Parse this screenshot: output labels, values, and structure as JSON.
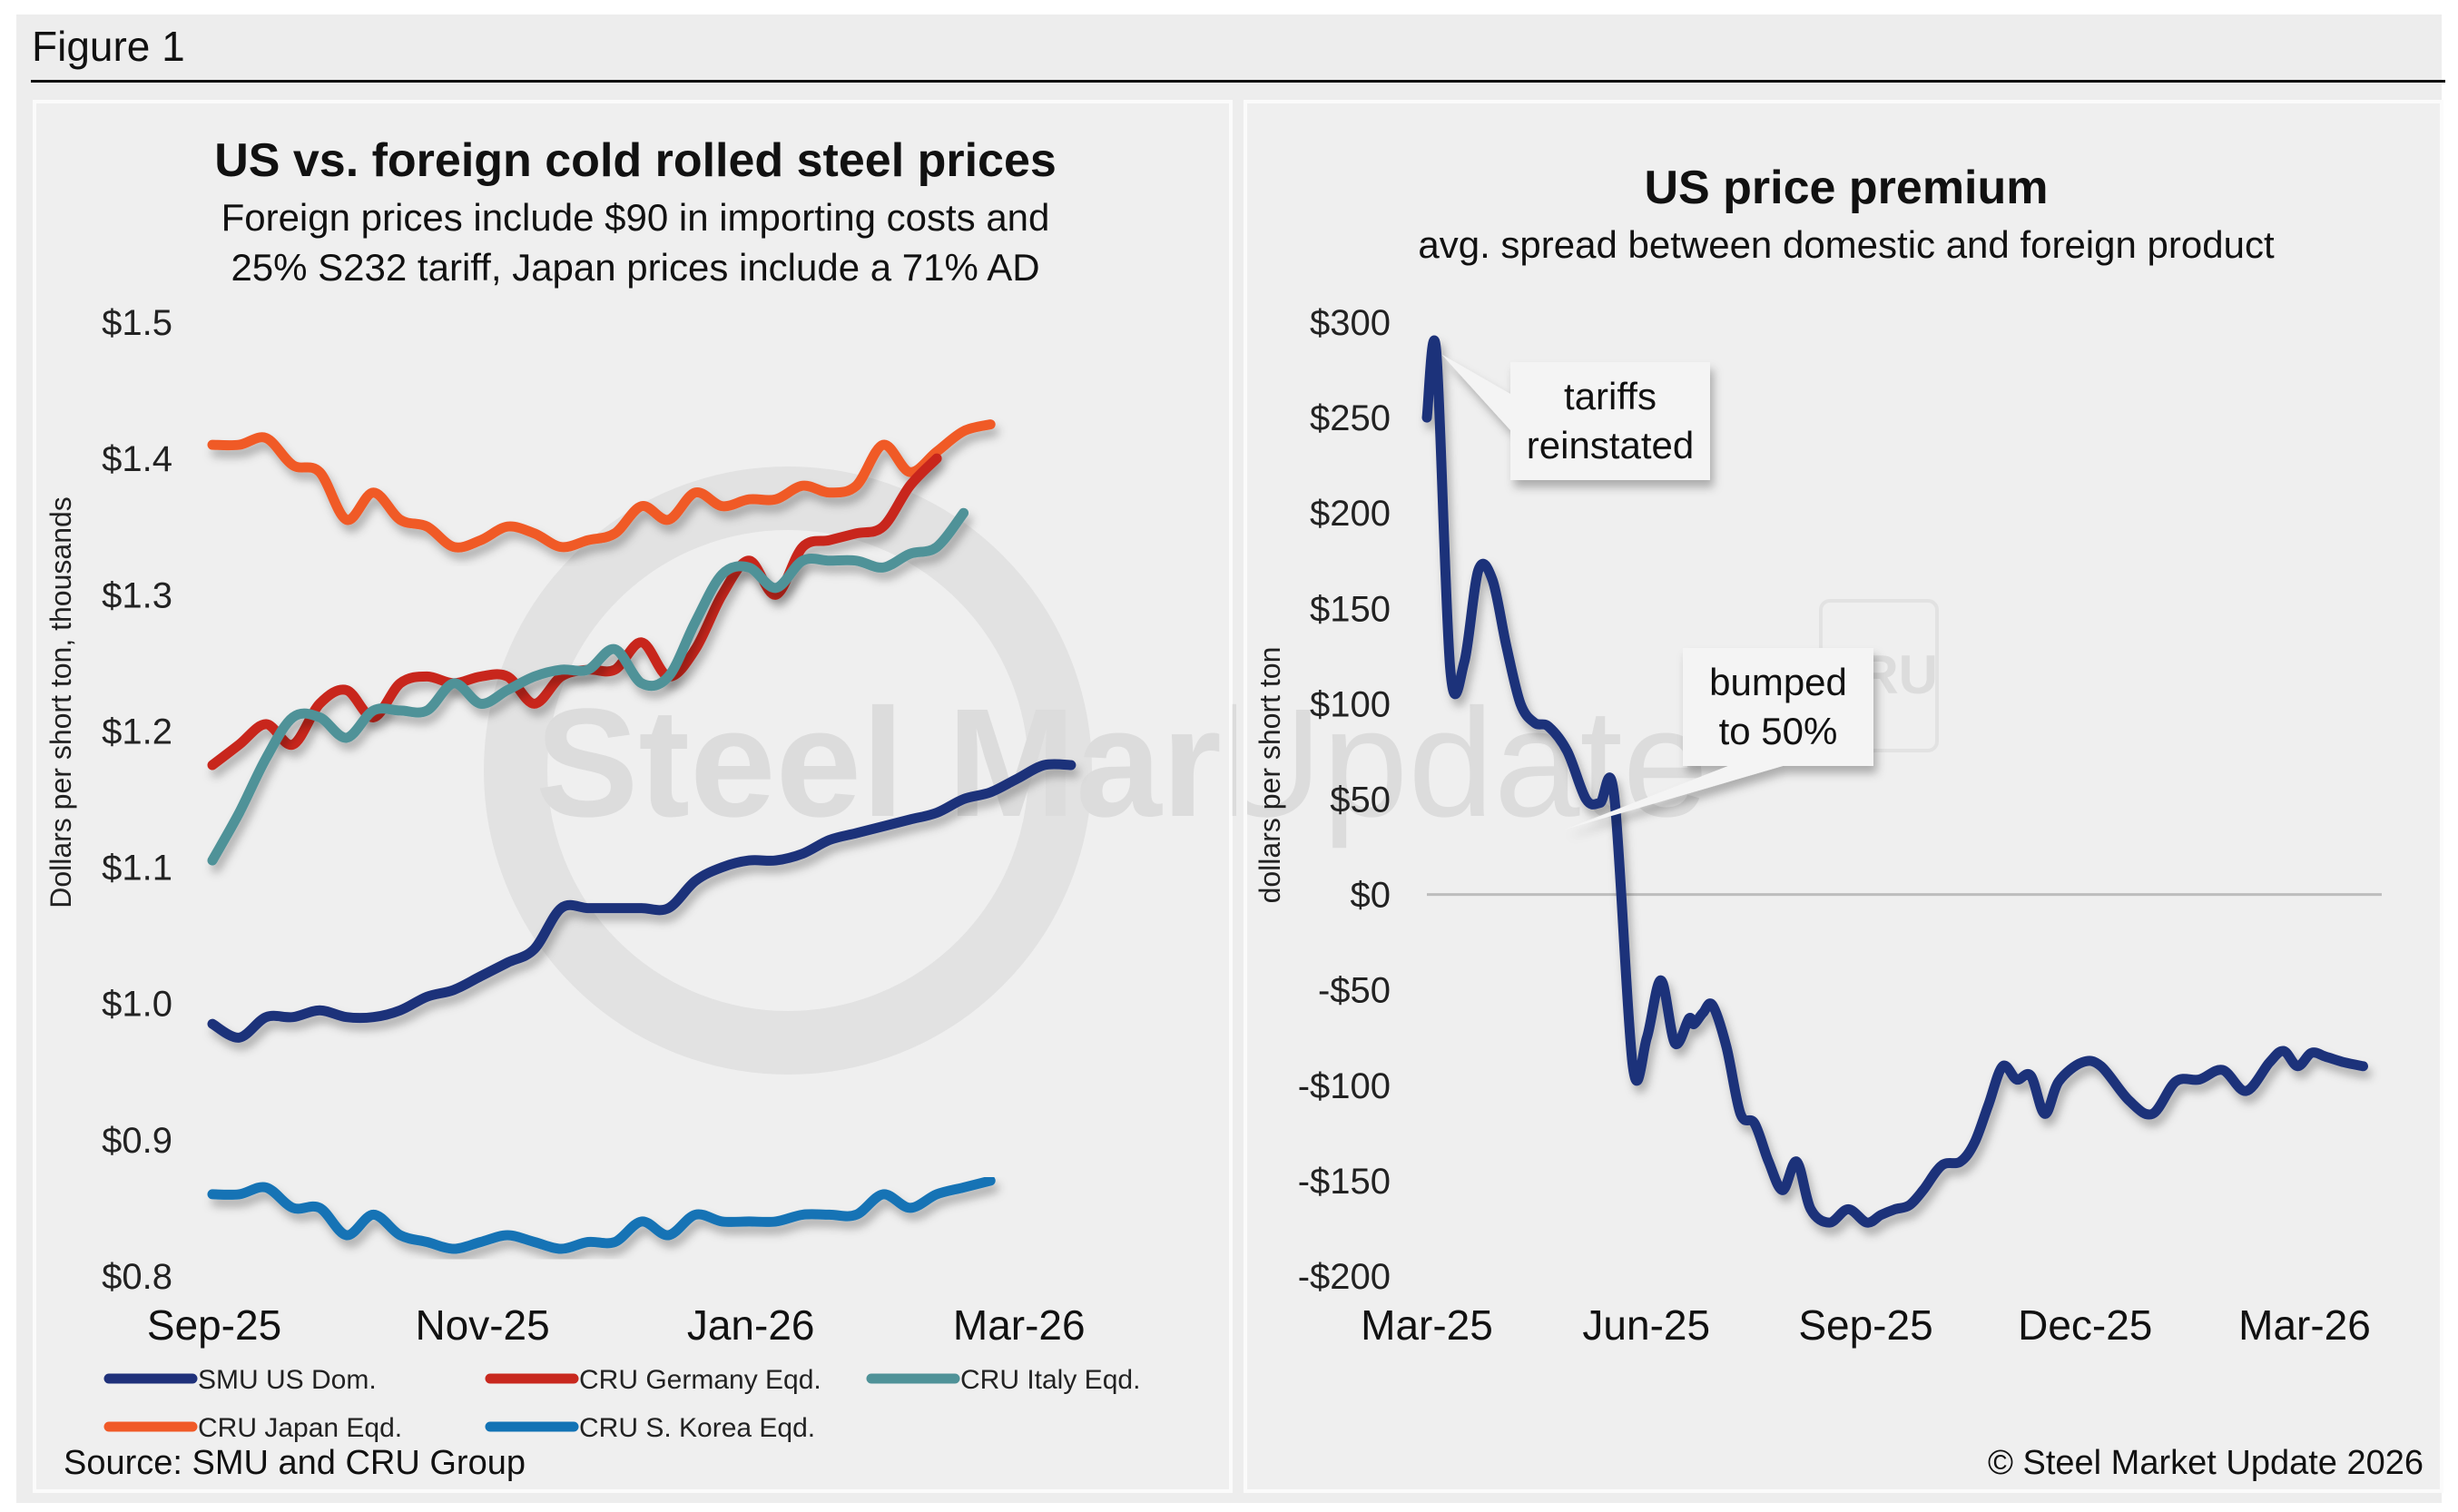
{
  "figure_label": "Figure 1",
  "chart_data": [
    {
      "type": "line",
      "title": "US vs. foreign cold rolled steel prices",
      "subtitle_lines": [
        "Foreign prices include $90 in importing costs and",
        "25% S232 tariff, Japan prices include a 71% AD"
      ],
      "xlabel": "",
      "ylabel": "Dollars per short ton, thousands",
      "ylim": [
        0.8,
        1.5
      ],
      "yticks": [
        "$1.5",
        "$1.4",
        "$1.3",
        "$1.2",
        "$1.1",
        "$1.0",
        "$0.9",
        "$0.8"
      ],
      "ytick_values": [
        1.5,
        1.4,
        1.3,
        1.2,
        1.1,
        1.0,
        0.9,
        0.8
      ],
      "xticks": [
        "Sep-25",
        "Nov-25",
        "Jan-26",
        "Mar-26"
      ],
      "xtick_positions_months": [
        0,
        2,
        4,
        6
      ],
      "xlim_months": [
        0,
        6.8
      ],
      "x_months": [
        0,
        0.2,
        0.4,
        0.6,
        0.8,
        1.0,
        1.2,
        1.4,
        1.6,
        1.8,
        2.0,
        2.2,
        2.4,
        2.6,
        2.8,
        3.0,
        3.2,
        3.4,
        3.6,
        3.8,
        4.0,
        4.2,
        4.4,
        4.6,
        4.8,
        5.0,
        5.2,
        5.4,
        5.6,
        5.8,
        6.0,
        6.2,
        6.4,
        6.6,
        6.8
      ],
      "series": [
        {
          "name": "SMU US Dom.",
          "color": "#1f317a",
          "values": [
            0.985,
            0.975,
            0.99,
            0.99,
            0.995,
            0.99,
            0.99,
            0.995,
            1.005,
            1.01,
            1.02,
            1.03,
            1.04,
            1.07,
            1.07,
            1.07,
            1.07,
            1.07,
            1.09,
            1.1,
            1.105,
            1.105,
            1.11,
            1.12,
            1.125,
            1.13,
            1.135,
            1.14,
            1.15,
            1.155,
            1.165,
            1.175,
            1.175,
            null,
            null
          ]
        },
        {
          "name": "CRU Germany Eqd.",
          "color": "#c8281e",
          "values": [
            1.175,
            1.19,
            1.205,
            1.19,
            1.22,
            1.23,
            1.21,
            1.235,
            1.24,
            1.235,
            1.24,
            1.24,
            1.22,
            1.24,
            1.245,
            1.245,
            1.265,
            1.24,
            1.26,
            1.3,
            1.325,
            1.3,
            1.335,
            1.34,
            1.345,
            1.35,
            1.38,
            1.4,
            null,
            null,
            null,
            null,
            null,
            null,
            null
          ]
        },
        {
          "name": "CRU Italy Eqd.",
          "color": "#4f9298",
          "values": [
            1.105,
            1.14,
            1.18,
            1.21,
            1.21,
            1.195,
            1.215,
            1.215,
            1.215,
            1.235,
            1.22,
            1.23,
            1.24,
            1.245,
            1.245,
            1.26,
            1.235,
            1.24,
            1.28,
            1.315,
            1.32,
            1.305,
            1.325,
            1.325,
            1.325,
            1.32,
            1.33,
            1.335,
            1.36,
            null,
            null,
            null,
            null,
            null,
            null
          ]
        },
        {
          "name": "CRU Japan Eqd.",
          "color": "#f05a28",
          "values": [
            1.41,
            1.41,
            1.415,
            1.395,
            1.39,
            1.355,
            1.375,
            1.355,
            1.35,
            1.335,
            1.34,
            1.35,
            1.345,
            1.335,
            1.34,
            1.345,
            1.365,
            1.355,
            1.375,
            1.365,
            1.37,
            1.37,
            1.38,
            1.375,
            1.38,
            1.41,
            1.39,
            1.405,
            1.42,
            1.425,
            null,
            null,
            null,
            null,
            null
          ]
        },
        {
          "name": "CRU S. Korea Eqd.",
          "color": "#1273b5",
          "values": [
            0.86,
            0.86,
            0.865,
            0.85,
            0.85,
            0.83,
            0.845,
            0.83,
            0.825,
            0.82,
            0.825,
            0.83,
            0.825,
            0.82,
            0.825,
            0.825,
            0.84,
            0.83,
            0.845,
            0.84,
            0.84,
            0.84,
            0.845,
            0.845,
            0.845,
            0.86,
            0.85,
            0.86,
            0.865,
            0.87,
            null,
            null,
            null,
            null,
            null
          ]
        }
      ],
      "legend": [
        "SMU US Dom.",
        "CRU Germany Eqd.",
        "CRU Italy Eqd.",
        "CRU Japan Eqd.",
        "CRU S. Korea Eqd."
      ],
      "legend_position": "bottom",
      "grid": false,
      "source": "Source: SMU and CRU Group"
    },
    {
      "type": "line",
      "title": "US price premium",
      "subtitle": "avg. spread between domestic and foreign product",
      "xlabel": "",
      "ylabel": "dollars per short ton",
      "ylim": [
        -200,
        300
      ],
      "yticks": [
        "$300",
        "$250",
        "$200",
        "$150",
        "$100",
        "$50",
        "$0",
        "-$50",
        "-$100",
        "-$150",
        "-$200"
      ],
      "ytick_values": [
        300,
        250,
        200,
        150,
        100,
        50,
        0,
        -50,
        -100,
        -150,
        -200
      ],
      "xticks": [
        "Mar-25",
        "Jun-25",
        "Sep-25",
        "Dec-25",
        "Mar-26"
      ],
      "xtick_positions_months": [
        0,
        3,
        6,
        9,
        12
      ],
      "xlim_months": [
        0,
        12.9
      ],
      "x_months": [
        0,
        0.1,
        0.25,
        0.4,
        0.55,
        0.7,
        0.85,
        1.0,
        1.15,
        1.3,
        1.5,
        1.7,
        1.85,
        2.0,
        2.2,
        2.35,
        2.5,
        2.65,
        2.8,
        2.85,
        2.95,
        3.05,
        3.2,
        3.35,
        3.5,
        3.65,
        3.8,
        3.95,
        4.1,
        4.3,
        4.5,
        4.7,
        4.85,
        5.0,
        5.15,
        5.3,
        5.5,
        5.7,
        5.85,
        6.0,
        6.15,
        6.3,
        6.45,
        6.6,
        6.75,
        7.0,
        7.2,
        7.5,
        7.75,
        8.0,
        8.25,
        8.5,
        8.75,
        9.0,
        9.15,
        9.3,
        9.45,
        9.6,
        9.8,
        10.0,
        10.2,
        10.4,
        10.6,
        10.8,
        11.0,
        11.2,
        11.35,
        11.55,
        11.7,
        11.9,
        12.1,
        12.3,
        12.45,
        12.65,
        12.8
      ],
      "series": [
        {
          "name": "US price premium",
          "color": "#1f317a",
          "values": [
            250,
            285,
            118,
            122,
            170,
            165,
            130,
            100,
            90,
            88,
            75,
            50,
            48,
            52,
            -90,
            -75,
            -45,
            -78,
            -65,
            -68,
            -62,
            -58,
            -80,
            -115,
            -120,
            -140,
            -155,
            -140,
            -165,
            -172,
            -165,
            -172,
            -168,
            -165,
            -163,
            -155,
            -142,
            -140,
            -130,
            -110,
            -90,
            -97,
            -95,
            -115,
            -98,
            -88,
            -90,
            -108,
            -115,
            -98,
            -97,
            -92,
            -103,
            -88,
            -82,
            -90,
            -83,
            -85,
            -88,
            -90,
            null,
            null,
            null,
            null,
            null,
            null,
            null,
            null,
            null,
            null,
            null,
            null,
            null,
            null,
            null
          ]
        }
      ],
      "annotations": [
        {
          "text_lines": [
            "tariffs",
            "reinstated"
          ],
          "x_month": 0.05,
          "y": 290
        },
        {
          "text_lines": [
            "bumped",
            "to 50%"
          ],
          "x_month": 2.9,
          "y": 35
        }
      ],
      "zero_line": true,
      "grid": false,
      "copyright": "© Steel Market Update 2026"
    }
  ],
  "watermark": {
    "main": "Steel Market Update",
    "badge": "CRU"
  }
}
